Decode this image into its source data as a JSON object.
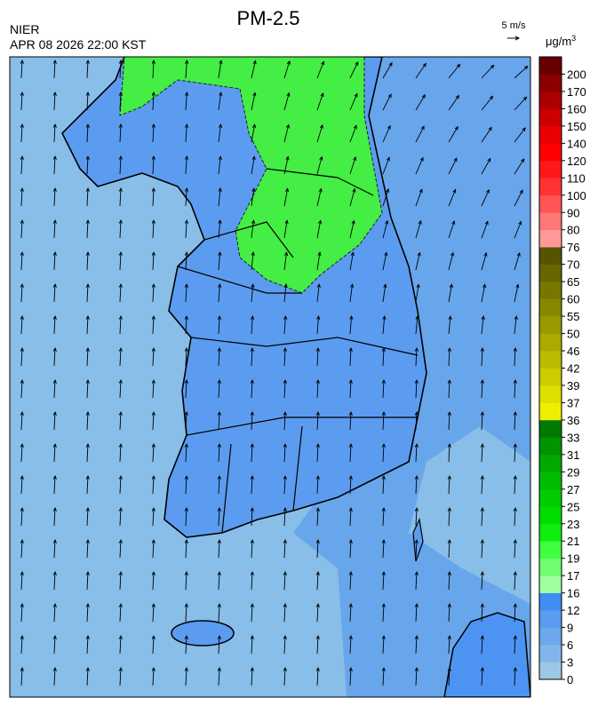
{
  "title": "PM-2.5",
  "source": "NIER",
  "timestamp": "APR 08 2026 22:00 KST",
  "wind_scale": "5 m/s",
  "unit": "μg/m",
  "unit_exponent": "3",
  "legend": {
    "ticks": [
      0,
      3,
      6,
      9,
      12,
      16,
      17,
      19,
      21,
      23,
      25,
      27,
      29,
      31,
      33,
      36,
      37,
      39,
      42,
      46,
      50,
      55,
      60,
      65,
      70,
      76,
      80,
      90,
      100,
      110,
      120,
      140,
      150,
      160,
      170,
      200
    ],
    "colors": [
      "#9cc8e6",
      "#82b6ea",
      "#6ca8ec",
      "#5a9cf0",
      "#3f8ef6",
      "#a0ffa0",
      "#70ff70",
      "#40ff40",
      "#10ee10",
      "#00dd00",
      "#00cc00",
      "#00bb00",
      "#00a800",
      "#009400",
      "#007a00",
      "#eeee00",
      "#dede00",
      "#cccc00",
      "#bbbb00",
      "#aaaa00",
      "#999900",
      "#888800",
      "#777700",
      "#666600",
      "#555500",
      "#ff9999",
      "#ff7777",
      "#ff5555",
      "#ff3333",
      "#ff1818",
      "#ff0000",
      "#e80000",
      "#cc0000",
      "#aa0000",
      "#8a0000",
      "#660000"
    ]
  }
}
